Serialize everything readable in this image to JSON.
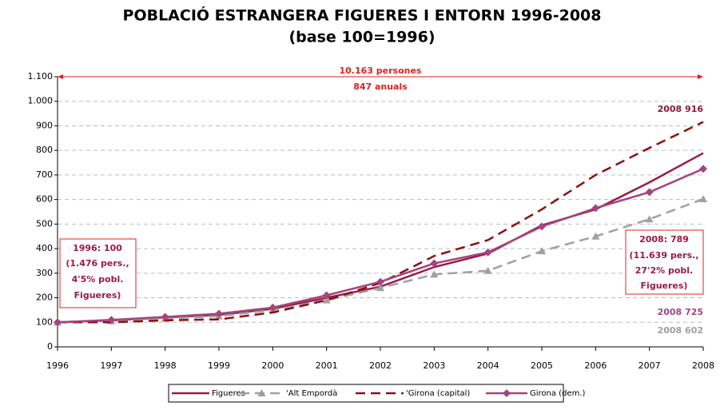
{
  "chart_data": {
    "type": "line",
    "title": "POBLACIÓ ESTRANGERA FIGUERES I ENTORN 1996-2008",
    "subtitle": "(base 100=1996)",
    "categories": [
      "1996",
      "1997",
      "1998",
      "1999",
      "2000",
      "2001",
      "2002",
      "2003",
      "2004",
      "2005",
      "2006",
      "2007",
      "2008"
    ],
    "series": [
      {
        "name": "Figueres",
        "color": "#9b1b44",
        "dash": false,
        "marker": "none",
        "values": [
          100,
          108,
          120,
          130,
          155,
          200,
          245,
          325,
          380,
          495,
          560,
          670,
          789
        ]
      },
      {
        "name": "'Alt Empordà",
        "color": "#a0a0a0",
        "dash": true,
        "marker": "triangle",
        "values": [
          100,
          105,
          115,
          125,
          150,
          190,
          240,
          295,
          310,
          390,
          450,
          520,
          602
        ]
      },
      {
        "name": "'Girona (capital)",
        "color": "#8b1010",
        "dash": true,
        "marker": "none",
        "values": [
          100,
          100,
          108,
          112,
          140,
          190,
          260,
          370,
          435,
          560,
          700,
          810,
          916
        ]
      },
      {
        "name": "Girona (dem.)",
        "color": "#a3457e",
        "dash": false,
        "marker": "diamond",
        "values": [
          100,
          110,
          122,
          135,
          160,
          210,
          265,
          340,
          385,
          490,
          565,
          630,
          725
        ]
      }
    ],
    "ylim": [
      0,
      1100
    ],
    "yticks": [
      0,
      100,
      200,
      300,
      400,
      500,
      600,
      700,
      800,
      900,
      {
        "value": 1000,
        "label": "1.000"
      },
      {
        "value": 1100,
        "label": "1.100"
      }
    ],
    "grid": true,
    "legend": "bottom",
    "annotations": [
      {
        "lines": [
          "10.163 persones",
          "847 anuals"
        ],
        "color": "#e02020"
      },
      {
        "lines": [
          "2008 916"
        ],
        "color": "#8b1a3a"
      },
      {
        "lines": [
          "1996: 100",
          "(1.476 pers.,",
          "4'5% pobl.",
          "Figueres)"
        ],
        "color": "#9b1b44"
      },
      {
        "lines": [
          "2008: 789",
          "(11.639 pers.,",
          "27'2% pobl.",
          "Figueres)"
        ],
        "color": "#9b1b44"
      },
      {
        "lines": [
          "2008 725"
        ],
        "color": "#a3457e"
      },
      {
        "lines": [
          "2008 602"
        ],
        "color": "#a0a0a0"
      }
    ]
  }
}
